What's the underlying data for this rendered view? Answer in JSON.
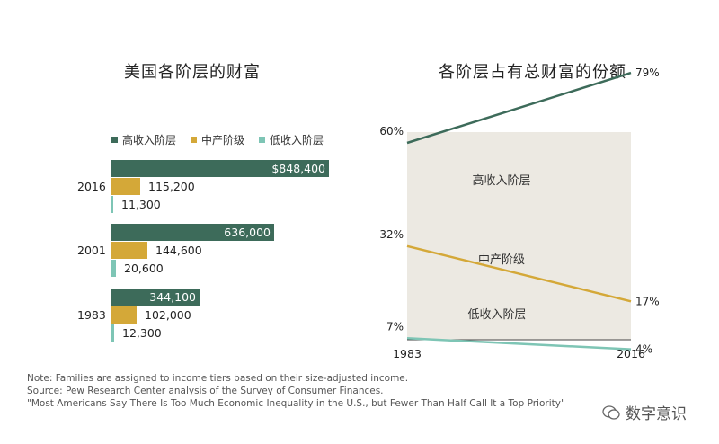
{
  "left_title": "美国各阶层的财富",
  "right_title": "各阶层占有总财富的份额",
  "colors": {
    "upper": "#3d6b5a",
    "middle": "#d4a838",
    "lower": "#7ec5b5",
    "plot_bg": "#ece9e2"
  },
  "legend": [
    {
      "label": "高收入阶层",
      "color_key": "upper"
    },
    {
      "label": "中产阶级",
      "color_key": "middle"
    },
    {
      "label": "低收入阶层",
      "color_key": "lower"
    }
  ],
  "chart_data": [
    {
      "type": "bar",
      "orientation": "horizontal",
      "categories": [
        "2016",
        "2001",
        "1983"
      ],
      "series": [
        {
          "name": "高收入阶层",
          "values": [
            848400,
            636000,
            344100
          ],
          "labels": [
            "$848,400",
            "636,000",
            "344,100"
          ]
        },
        {
          "name": "中产阶级",
          "values": [
            115200,
            144600,
            102000
          ],
          "labels": [
            "115,200",
            "144,600",
            "102,000"
          ]
        },
        {
          "name": "低收入阶层",
          "values": [
            11300,
            20600,
            12300
          ],
          "labels": [
            "11,300",
            "20,600",
            "12,300"
          ]
        }
      ],
      "title": "美国各阶层的财富"
    },
    {
      "type": "line",
      "x": [
        "1983",
        "2016"
      ],
      "series": [
        {
          "name": "高收入阶层",
          "values": [
            60,
            79
          ],
          "labels": [
            "60%",
            "79%"
          ]
        },
        {
          "name": "中产阶级",
          "values": [
            32,
            17
          ],
          "labels": [
            "32%",
            "17%"
          ]
        },
        {
          "name": "低收入阶层",
          "values": [
            7,
            4
          ],
          "labels": [
            "7%",
            "4%"
          ]
        }
      ],
      "title": "各阶层占有总财富的份额",
      "ylim": [
        0,
        90
      ]
    }
  ],
  "notes": [
    "Note: Families are assigned to income tiers based on their size-adjusted income.",
    "Source: Pew Research Center analysis of the Survey of Consumer Finances.",
    "\"Most Americans Say There Is Too Much Economic Inequality in the U.S., but Fewer Than Half Call It a Top Priority\""
  ],
  "watermark": "数字意识"
}
